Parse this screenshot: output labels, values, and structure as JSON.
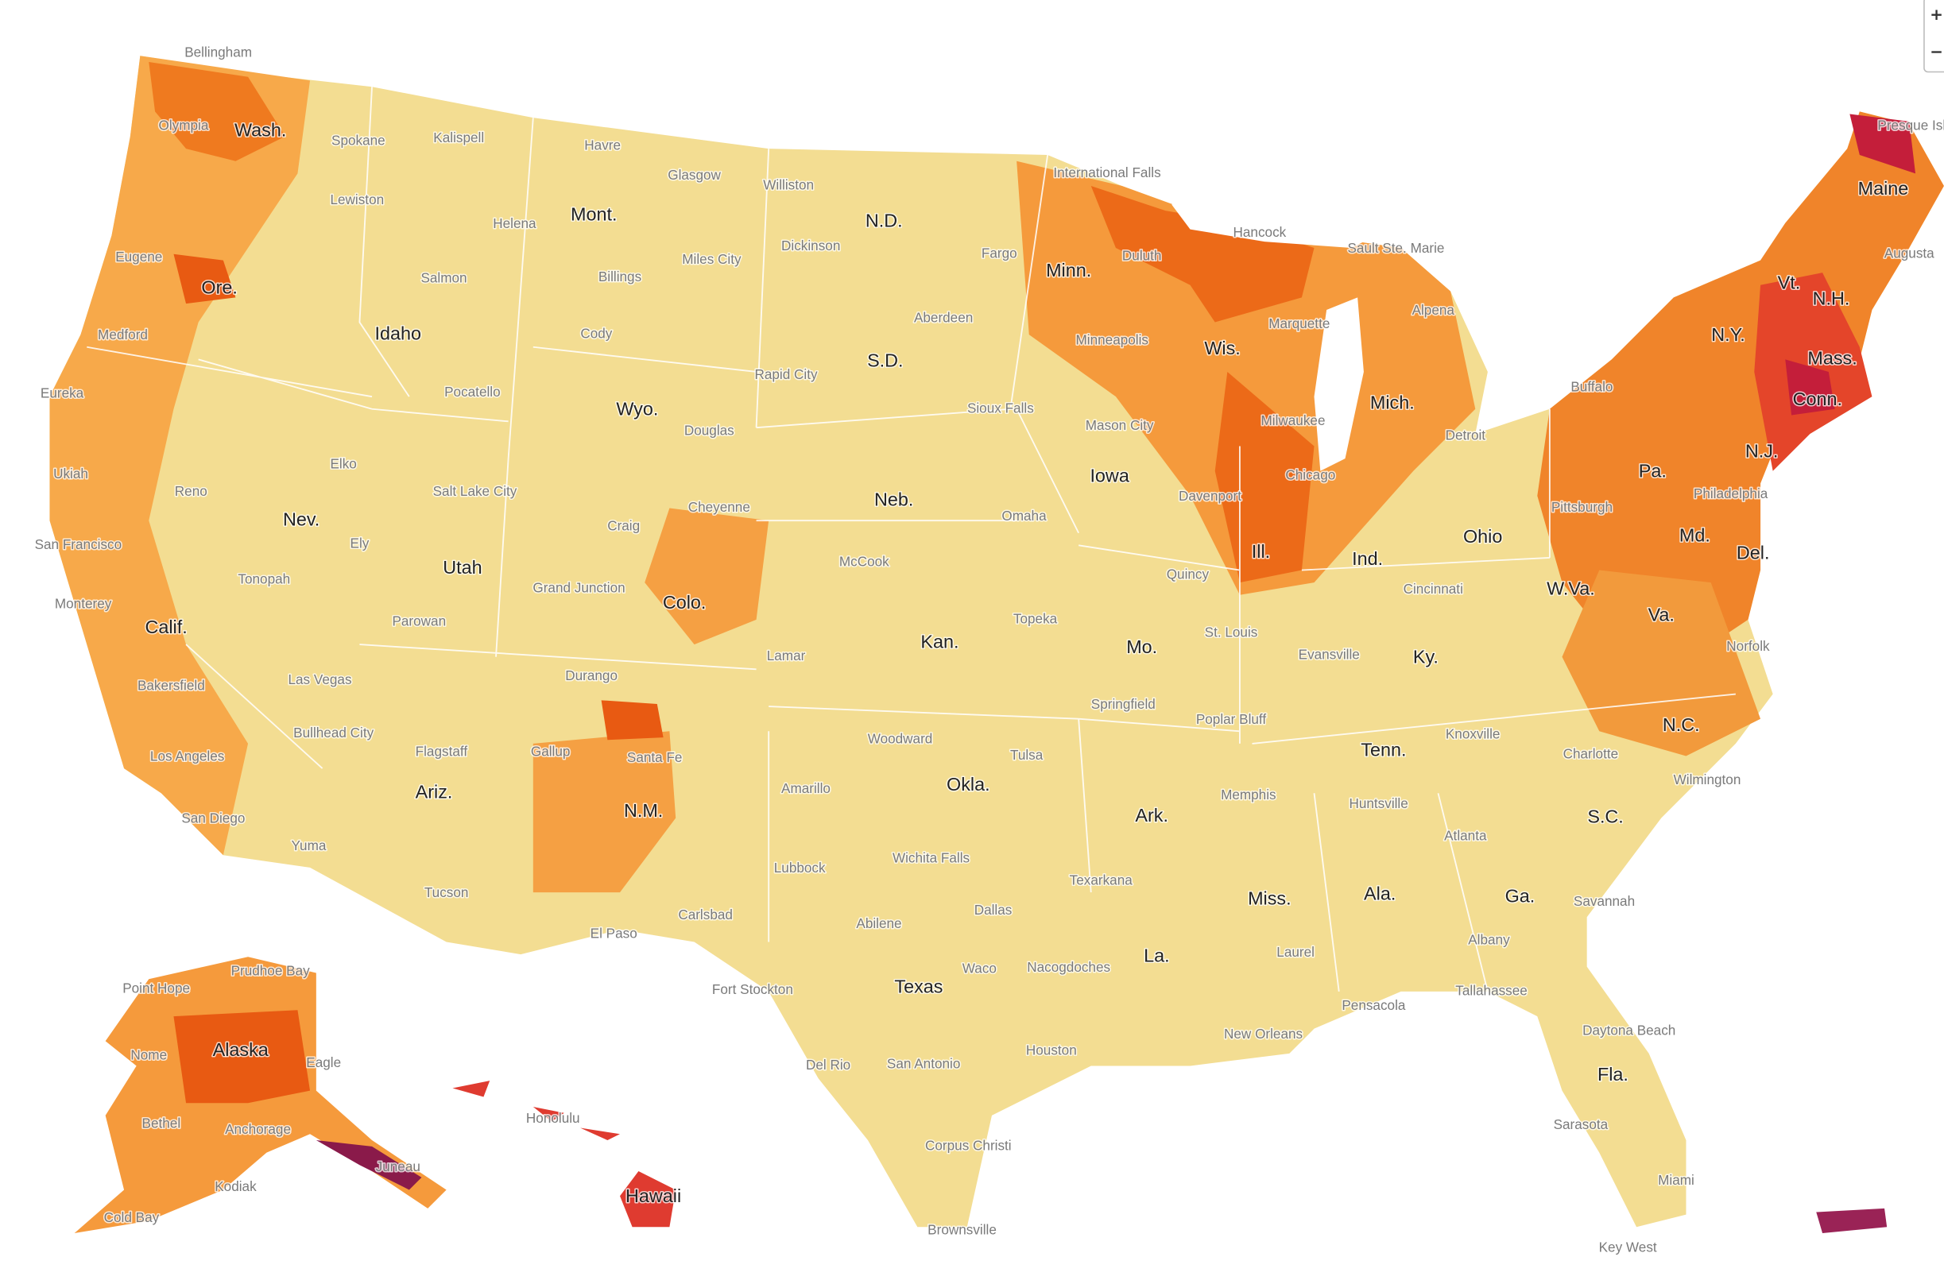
{
  "states": [
    "Wash.",
    "Ore.",
    "Calif.",
    "Idaho",
    "Nev.",
    "Mont.",
    "Wyo.",
    "Utah",
    "Colo.",
    "Ariz.",
    "N.M.",
    "N.D.",
    "S.D.",
    "Neb.",
    "Kan.",
    "Okla.",
    "Texas",
    "Minn.",
    "Iowa",
    "Mo.",
    "Ark.",
    "La.",
    "Wis.",
    "Ill.",
    "Mich.",
    "Ind.",
    "Ohio",
    "Ky.",
    "Tenn.",
    "Miss.",
    "Ala.",
    "Ga.",
    "Fla.",
    "S.C.",
    "N.C.",
    "Va.",
    "W.Va.",
    "Md.",
    "Del.",
    "Pa.",
    "N.J.",
    "N.Y.",
    "Conn.",
    "Mass.",
    "Vt.",
    "N.H.",
    "Maine",
    "Alaska",
    "Hawaii"
  ],
  "cities": [
    "Bellingham",
    "Olympia",
    "Spokane",
    "Kalispell",
    "Havre",
    "Glasgow",
    "Williston",
    "International Falls",
    "Hancock",
    "Sault Ste. Marie",
    "Presque Isle",
    "Lewiston",
    "Helena",
    "Billings",
    "Miles City",
    "Dickinson",
    "Fargo",
    "Duluth",
    "Eugene",
    "Salmon",
    "Medford",
    "Cody",
    "Aberdeen",
    "Minneapolis",
    "Marquette",
    "Alpena",
    "Augusta",
    "Eureka",
    "Pocatello",
    "Rapid City",
    "Sioux Falls",
    "Buffalo",
    "Douglas",
    "Mason City",
    "Milwaukee",
    "Detroit",
    "Ukiah",
    "Elko",
    "Salt Lake City",
    "Chicago",
    "Davenport",
    "Philadelphia",
    "Reno",
    "Cheyenne",
    "Omaha",
    "Pittsburgh",
    "San Francisco",
    "Ely",
    "Craig",
    "McCook",
    "Quincy",
    "Cincinnati",
    "Tonopah",
    "Monterey",
    "Grand Junction",
    "Topeka",
    "Evansville",
    "Parowan",
    "St. Louis",
    "Norfolk",
    "Durango",
    "Lamar",
    "Bakersfield",
    "Las Vegas",
    "Springfield",
    "Poplar Bluff",
    "Bullhead City",
    "Woodward",
    "Knoxville",
    "Charlotte",
    "Los Angeles",
    "Flagstaff",
    "Gallup",
    "Santa Fe",
    "Tulsa",
    "Memphis",
    "Wilmington",
    "Amarillo",
    "Huntsville",
    "San Diego",
    "Yuma",
    "Atlanta",
    "Wichita Falls",
    "Lubbock",
    "Texarkana",
    "Tucson",
    "Savannah",
    "Carlsbad",
    "Abilene",
    "Dallas",
    "El Paso",
    "Albany",
    "Laurel",
    "Nacogdoches",
    "Waco",
    "Prudhoe Bay",
    "Fort Stockton",
    "Pensacola",
    "Tallahassee",
    "Point Hope",
    "Daytona Beach",
    "New Orleans",
    "Houston",
    "Nome",
    "Eagle",
    "Del Rio",
    "San Antonio",
    "Honolulu",
    "Bethel",
    "Anchorage",
    "Sarasota",
    "Juneau",
    "Corpus Christi",
    "Kodiak",
    "Miami",
    "Cold Bay",
    "Brownsville",
    "Key West"
  ]
}
